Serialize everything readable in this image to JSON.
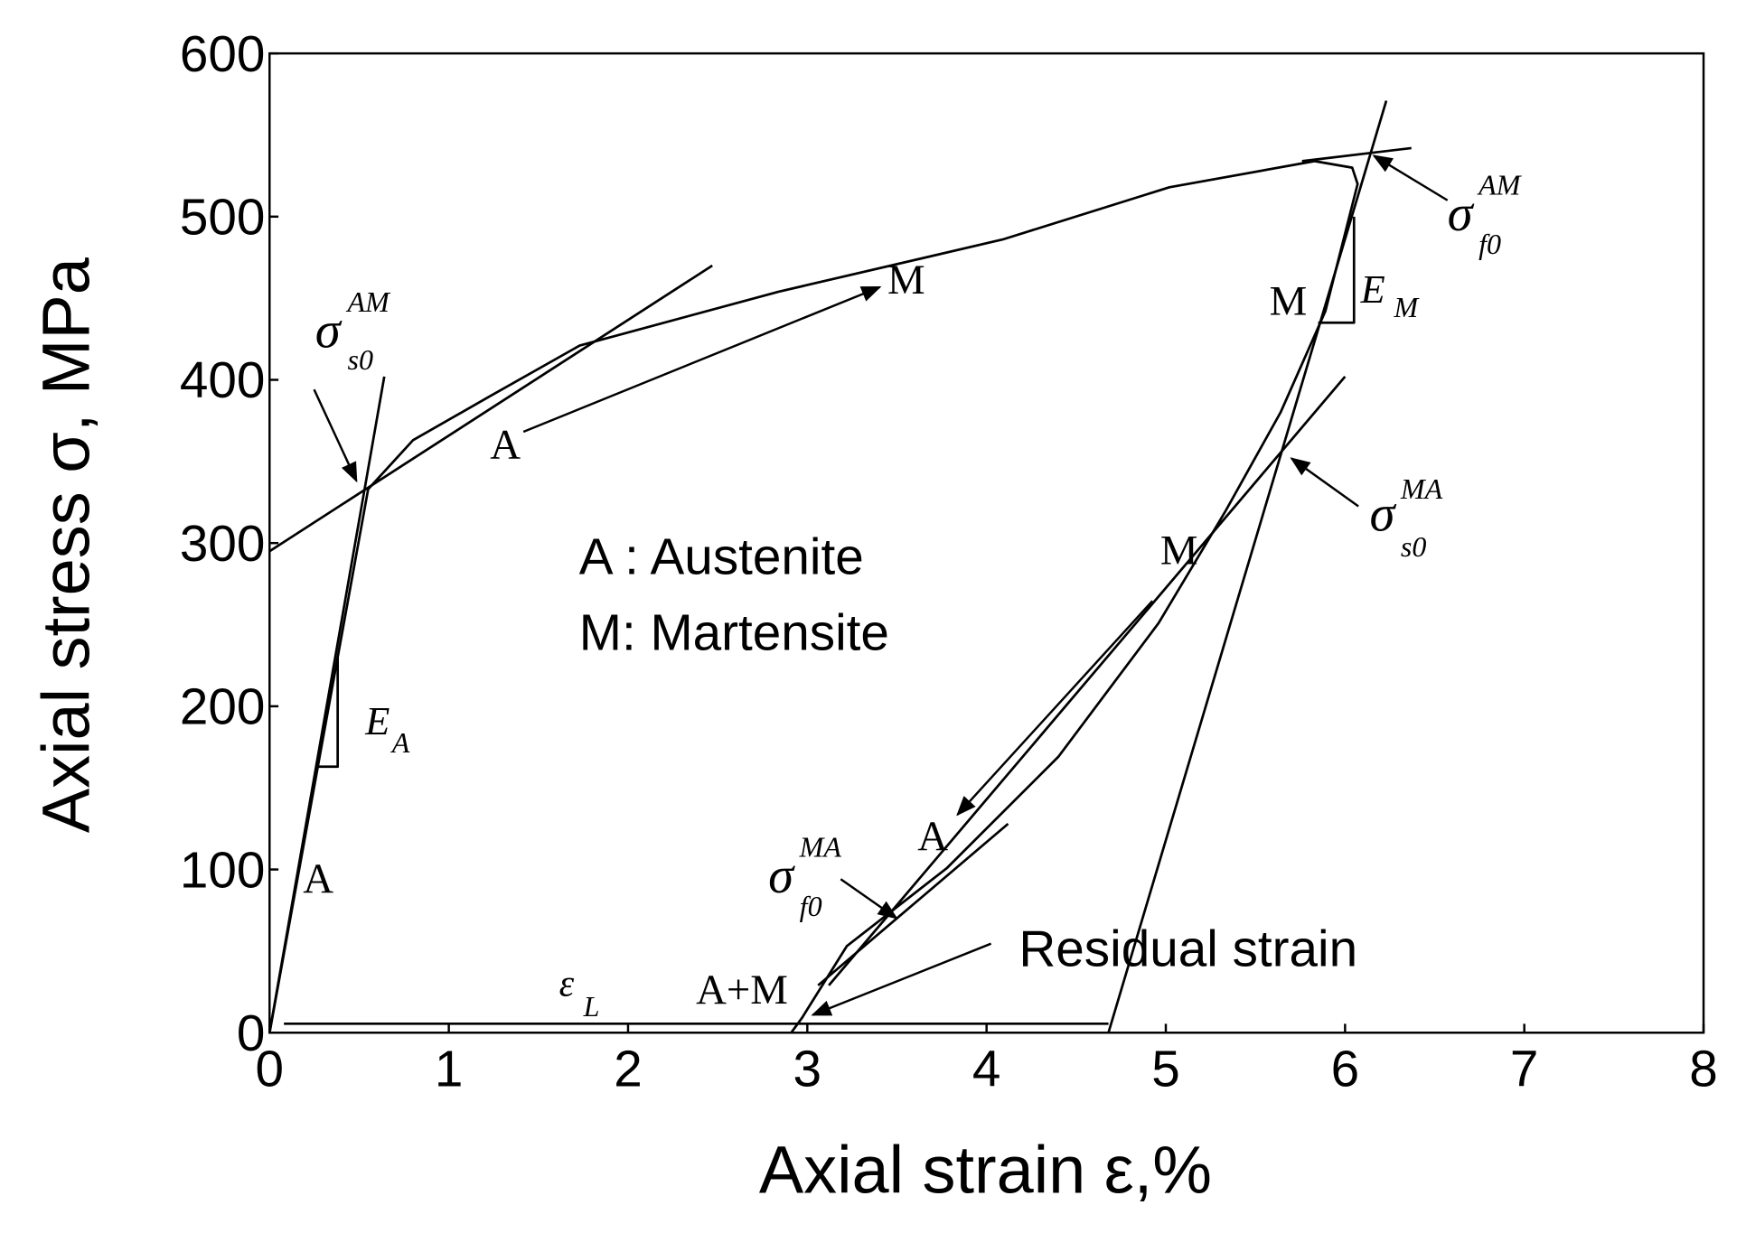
{
  "chart_data": {
    "type": "line",
    "xlabel": "Axial strain ε,%",
    "ylabel": "Axial stress σ, MPa",
    "xlim": [
      0,
      8
    ],
    "ylim": [
      0,
      600
    ],
    "xticks": [
      0,
      1,
      2,
      3,
      4,
      5,
      6,
      7,
      8
    ],
    "yticks": [
      0,
      100,
      200,
      300,
      400,
      500,
      600
    ],
    "grid": false,
    "series": [
      {
        "color": "#000000",
        "x": [
          0,
          0.38,
          0.55,
          0.8,
          1.23,
          1.73,
          2.84,
          4.09,
          5.02,
          5.83,
          6.04,
          6.07,
          5.89,
          5.64,
          5.33,
          4.96,
          4.4,
          3.78,
          3.22,
          2.97,
          2.91
        ],
        "values": [
          0,
          230,
          333,
          363,
          390,
          421,
          454,
          486,
          518,
          534,
          530,
          520,
          442,
          380,
          319,
          251,
          169,
          101,
          53,
          9,
          0
        ]
      },
      {
        "color": "#000000",
        "x": [
          0,
          0.64
        ],
        "values": [
          0,
          402
        ]
      },
      {
        "color": "#000000",
        "x": [
          0,
          2.47
        ],
        "values": [
          295,
          470
        ]
      },
      {
        "color": "#000000",
        "x": [
          4.68,
          6.23
        ],
        "values": [
          0,
          571
        ]
      },
      {
        "color": "#000000",
        "x": [
          5.76,
          6.37
        ],
        "values": [
          534,
          542
        ]
      },
      {
        "color": "#000000",
        "x": [
          6.0,
          3.12
        ],
        "values": [
          402,
          29
        ]
      },
      {
        "color": "#000000",
        "x": [
          4.12,
          3.06
        ],
        "values": [
          128,
          29
        ]
      },
      {
        "color": "#000000",
        "x": [
          0.08,
          4.68
        ],
        "values": [
          5.5,
          5.5
        ]
      },
      {
        "color": "#000000",
        "x": [
          0.26,
          0.38,
          0.38
        ],
        "values": [
          163,
          163,
          230
        ]
      },
      {
        "color": "#000000",
        "x": [
          5.85,
          6.05,
          6.05
        ],
        "values": [
          435,
          435,
          500
        ]
      }
    ],
    "annotations": [
      {
        "text": "σ",
        "sup": "AM",
        "sub": "s0"
      },
      {
        "text": "σ",
        "sup": "AM",
        "sub": "f0"
      },
      {
        "text": "σ",
        "sup": "MA",
        "sub": "s0"
      },
      {
        "text": "σ",
        "sup": "MA",
        "sub": "f0"
      },
      {
        "text": "E",
        "sub": "A"
      },
      {
        "text": "E",
        "sub": "M"
      },
      {
        "text": "ε",
        "sub": "L"
      },
      {
        "text": "A"
      },
      {
        "text": "A"
      },
      {
        "text": "M"
      },
      {
        "text": "M"
      },
      {
        "text": "M"
      },
      {
        "text": "A"
      },
      {
        "text": "A+M"
      },
      {
        "text": "A : Austenite"
      },
      {
        "text": "M: Martensite"
      },
      {
        "text": "Residual strain"
      }
    ]
  }
}
